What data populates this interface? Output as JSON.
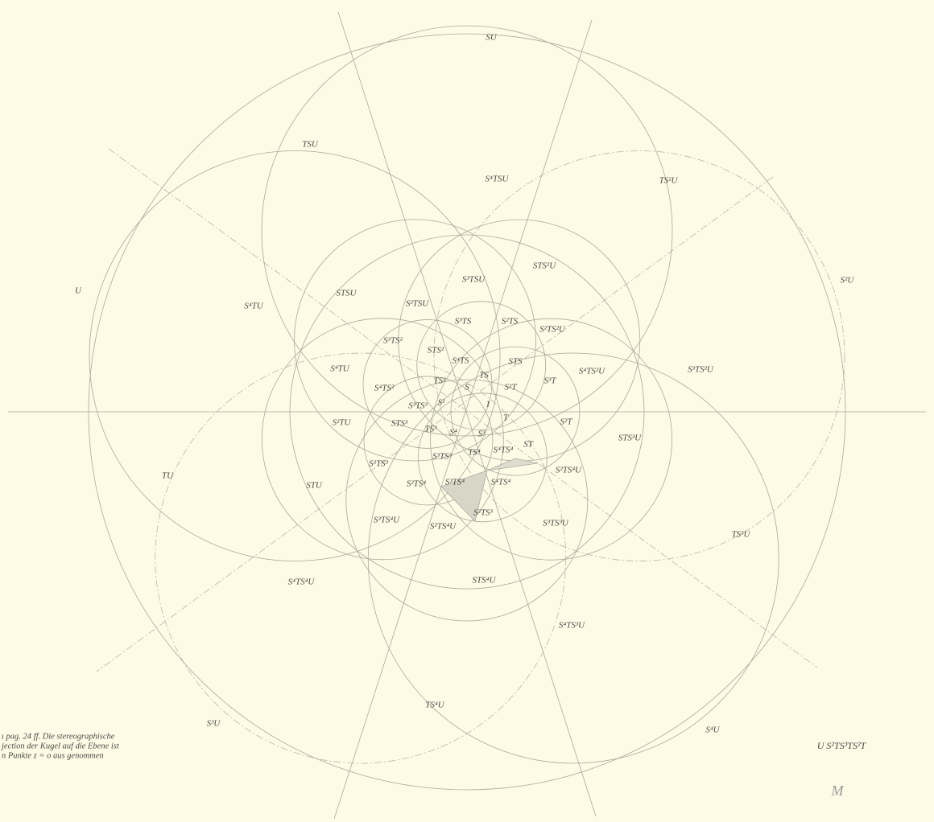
{
  "labels": [
    "SU",
    "TSU",
    "S⁴TSU",
    "TS²U",
    "U",
    "S⁴TU",
    "STSU",
    "S³TSU",
    "STS²U",
    "S²U",
    "S²TSU",
    "S³TS",
    "S²TS",
    "S²TS²U",
    "S³TS²",
    "STS²",
    "S⁴TS",
    "STS",
    "S⁴TU",
    "S⁴TS²U",
    "S³TS²U",
    "TS²",
    "TS",
    "S³T",
    "S",
    "S⁴TS²",
    "S³TS³",
    "S²",
    "S²T",
    "1",
    "S²TU",
    "STS³",
    "TS³",
    "S⁴",
    "T",
    "S³",
    "S²T",
    "STS³U",
    "S²TS³",
    "S³TS³",
    "TS⁴",
    "S⁴TS⁴",
    "ST",
    "S²TS⁴U",
    "TU",
    "STU",
    "S²TS⁴",
    "S³TS⁴",
    "S⁴TS⁴",
    "S²TS³",
    "S³TS⁴U",
    "S²TS⁴U",
    "S³TS³U",
    "TS³U",
    "S⁴TS⁴U",
    "STS⁴U",
    "S⁴TS³U",
    "TS⁴U",
    "S³U",
    "S⁴U"
  ],
  "formula": "U   S²TS³TS²T",
  "caption": [
    "ı pag. 24 ff.  Die stereographische",
    "jection der Kugel auf die Ebene ist",
    "n Punkte z = o aus genommen"
  ]
}
